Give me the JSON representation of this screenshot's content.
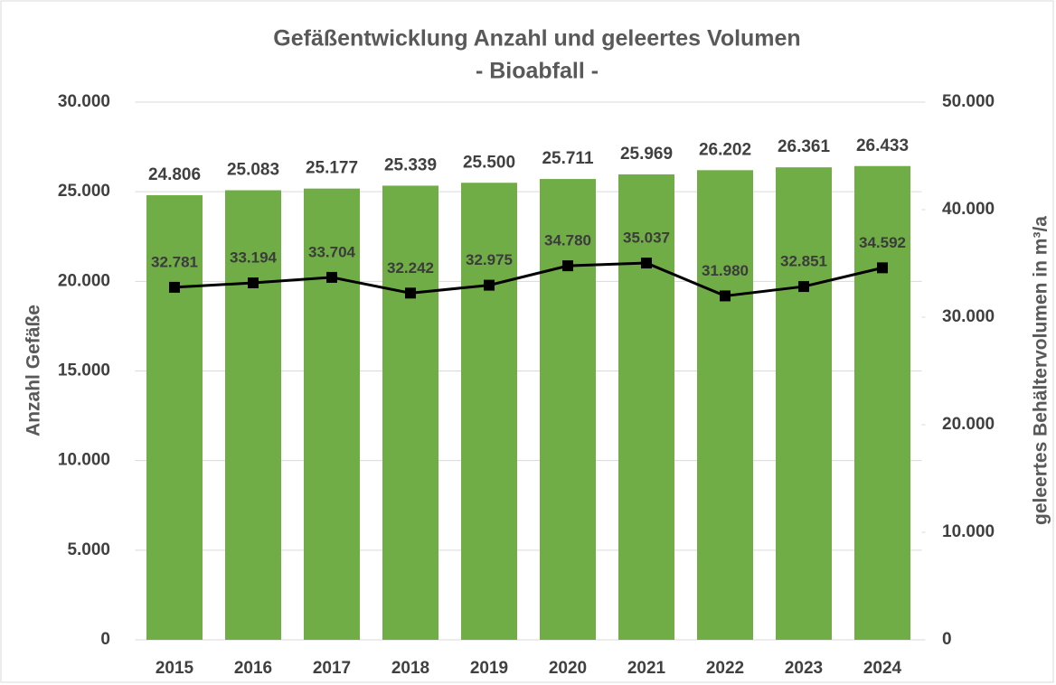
{
  "chart_data": {
    "type": "bar",
    "title": "Gefäßentwicklung Anzahl und geleertes Volumen",
    "subtitle": "- Bioabfall -",
    "y_label": "Anzahl Gefäße",
    "y2_label": "geleertes Behältervolumen in m³/a",
    "categories": [
      "2015",
      "2016",
      "2017",
      "2018",
      "2019",
      "2020",
      "2021",
      "2022",
      "2023",
      "2024"
    ],
    "series": [
      {
        "type": "bar",
        "color": "#70ad47",
        "values": [
          24806,
          25083,
          25177,
          25339,
          25500,
          25711,
          25969,
          26202,
          26361,
          26433
        ],
        "value_labels": [
          "24.806",
          "25.083",
          "25.177",
          "25.339",
          "25.500",
          "25.711",
          "25.969",
          "26.202",
          "26.361",
          "26.433"
        ]
      },
      {
        "type": "line",
        "axis": "y2",
        "color": "#000000",
        "values": [
          32781,
          33194,
          33704,
          32242,
          32975,
          34780,
          35037,
          31980,
          32851,
          34592
        ],
        "value_labels": [
          "32.781",
          "33.194",
          "33.704",
          "32.242",
          "32.975",
          "34.780",
          "35.037",
          "31.980",
          "32.851",
          "34.592"
        ]
      }
    ],
    "ylim": [
      0,
      30000
    ],
    "yticks": [
      0,
      {
        "value": 5000,
        "label": "5.000"
      },
      {
        "value": 10000,
        "label": "10.000"
      },
      {
        "value": 15000,
        "label": "15.000"
      },
      {
        "value": 20000,
        "label": "20.000"
      },
      {
        "value": 25000,
        "label": "25.000"
      },
      {
        "value": 30000,
        "label": "30.000"
      }
    ],
    "y2lim": [
      0,
      50000
    ],
    "y2ticks": [
      0,
      {
        "value": 10000,
        "label": "10.000"
      },
      {
        "value": 20000,
        "label": "20.000"
      },
      {
        "value": 30000,
        "label": "30.000"
      },
      {
        "value": 40000,
        "label": "40.000"
      },
      {
        "value": 50000,
        "label": "50.000"
      }
    ],
    "grid": true
  }
}
